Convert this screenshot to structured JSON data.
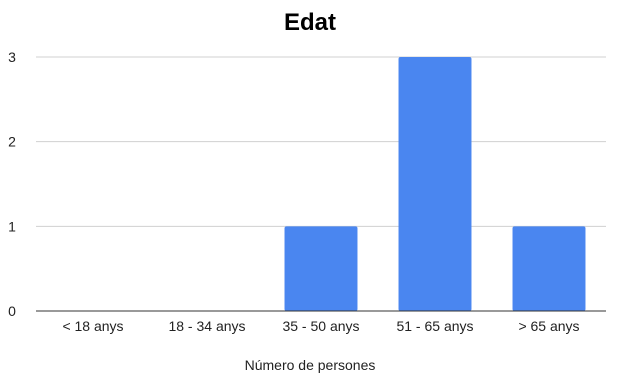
{
  "chart_data": {
    "type": "bar",
    "title": "Edat",
    "xlabel": "Número de persones",
    "ylabel": "",
    "categories": [
      "< 18 anys",
      "18 - 34 anys",
      "35 - 50 anys",
      "51 - 65 anys",
      "> 65 anys"
    ],
    "values": [
      0,
      0,
      1,
      3,
      1
    ],
    "ylim": [
      0,
      3
    ],
    "yticks": [
      0,
      1,
      2,
      3
    ],
    "grid": true,
    "legend": "none",
    "bar_color": "#4a86f0",
    "grid_color": "#d0d0d0",
    "axis_color": "#333333"
  }
}
